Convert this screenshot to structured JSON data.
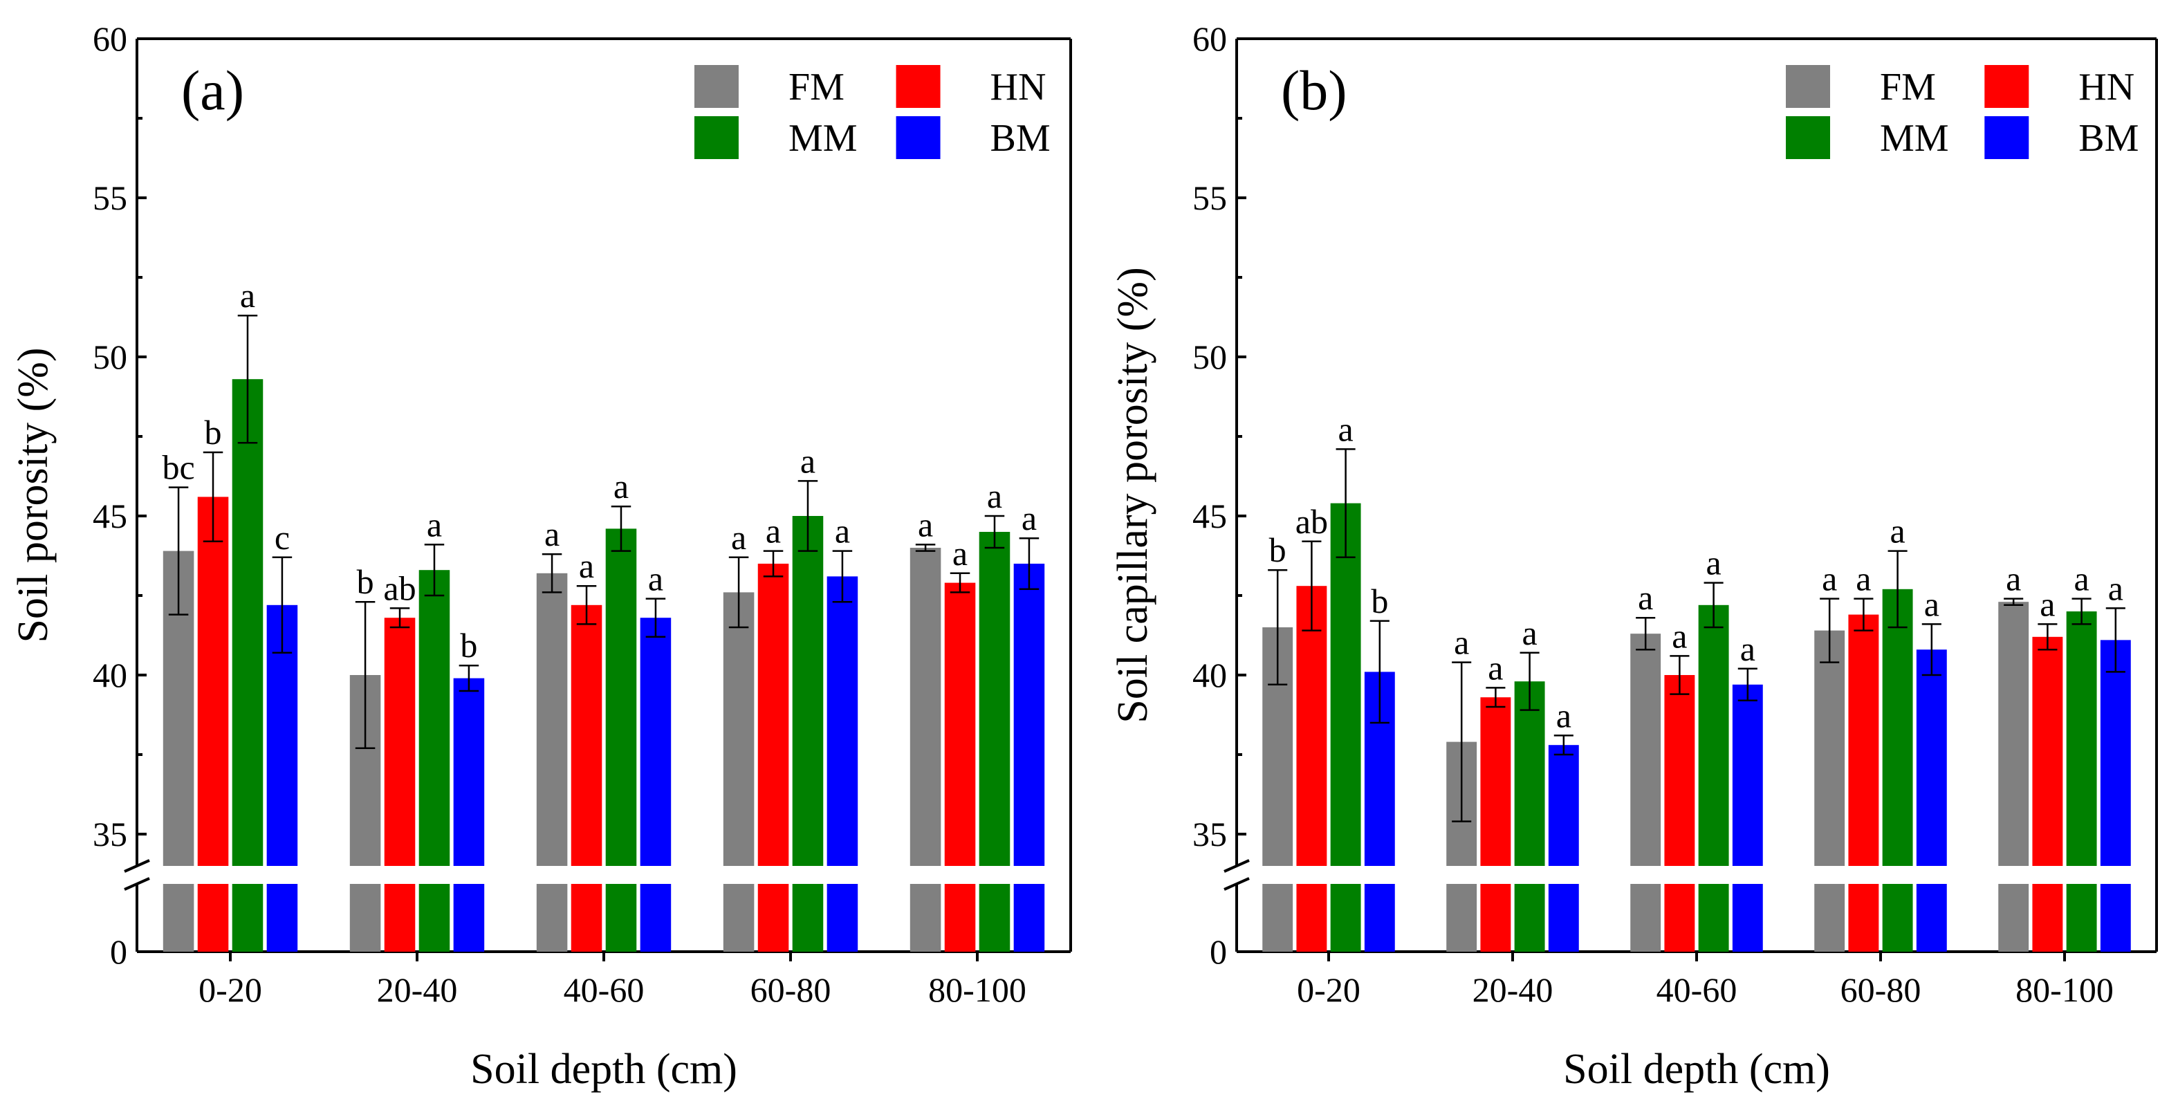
{
  "colors": {
    "FM": "#808080",
    "HN": "#ff0000",
    "MM": "#008000",
    "BM": "#0000ff"
  },
  "chart_data": [
    {
      "type": "bar",
      "panel_label": "(a)",
      "xlabel": "Soil depth (cm)",
      "ylabel": "Soil porosity (%)",
      "ylim": [
        0,
        60
      ],
      "axis_break": [
        2.5,
        34
      ],
      "yticks": [
        0,
        35,
        40,
        45,
        50,
        55,
        60
      ],
      "legend_position": "top-right",
      "categories": [
        "0-20",
        "20-40",
        "40-60",
        "60-80",
        "80-100"
      ],
      "series": [
        {
          "name": "FM",
          "values": [
            43.9,
            40.0,
            43.2,
            42.6,
            44.0
          ],
          "errors": [
            2.0,
            2.3,
            0.6,
            1.1,
            0.1
          ],
          "letters": [
            "bc",
            "b",
            "a",
            "a",
            "a"
          ]
        },
        {
          "name": "HN",
          "values": [
            45.6,
            41.8,
            42.2,
            43.5,
            42.9
          ],
          "errors": [
            1.4,
            0.3,
            0.6,
            0.4,
            0.3
          ],
          "letters": [
            "b",
            "ab",
            "a",
            "a",
            "a"
          ]
        },
        {
          "name": "MM",
          "values": [
            49.3,
            43.3,
            44.6,
            45.0,
            44.5
          ],
          "errors": [
            2.0,
            0.8,
            0.7,
            1.1,
            0.5
          ],
          "letters": [
            "a",
            "a",
            "a",
            "a",
            "a"
          ]
        },
        {
          "name": "BM",
          "values": [
            42.2,
            39.9,
            41.8,
            43.1,
            43.5
          ],
          "errors": [
            1.5,
            0.4,
            0.6,
            0.8,
            0.8
          ],
          "letters": [
            "c",
            "b",
            "a",
            "a",
            "a"
          ]
        }
      ]
    },
    {
      "type": "bar",
      "panel_label": "(b)",
      "xlabel": "Soil depth (cm)",
      "ylabel": "Soil capillary porosity (%)",
      "ylim": [
        0,
        60
      ],
      "axis_break": [
        2.5,
        34
      ],
      "yticks": [
        0,
        35,
        40,
        45,
        50,
        55,
        60
      ],
      "legend_position": "top-right",
      "categories": [
        "0-20",
        "20-40",
        "40-60",
        "60-80",
        "80-100"
      ],
      "series": [
        {
          "name": "FM",
          "values": [
            41.5,
            37.9,
            41.3,
            41.4,
            42.3
          ],
          "errors": [
            1.8,
            2.5,
            0.5,
            1.0,
            0.1
          ],
          "letters": [
            "b",
            "a",
            "a",
            "a",
            "a"
          ]
        },
        {
          "name": "HN",
          "values": [
            42.8,
            39.3,
            40.0,
            41.9,
            41.2
          ],
          "errors": [
            1.4,
            0.3,
            0.6,
            0.5,
            0.4
          ],
          "letters": [
            "ab",
            "a",
            "a",
            "a",
            "a"
          ]
        },
        {
          "name": "MM",
          "values": [
            45.4,
            39.8,
            42.2,
            42.7,
            42.0
          ],
          "errors": [
            1.7,
            0.9,
            0.7,
            1.2,
            0.4
          ],
          "letters": [
            "a",
            "a",
            "a",
            "a",
            "a"
          ]
        },
        {
          "name": "BM",
          "values": [
            40.1,
            37.8,
            39.7,
            40.8,
            41.1
          ],
          "errors": [
            1.6,
            0.3,
            0.5,
            0.8,
            1.0
          ],
          "letters": [
            "b",
            "a",
            "a",
            "a",
            "a"
          ]
        }
      ]
    }
  ]
}
